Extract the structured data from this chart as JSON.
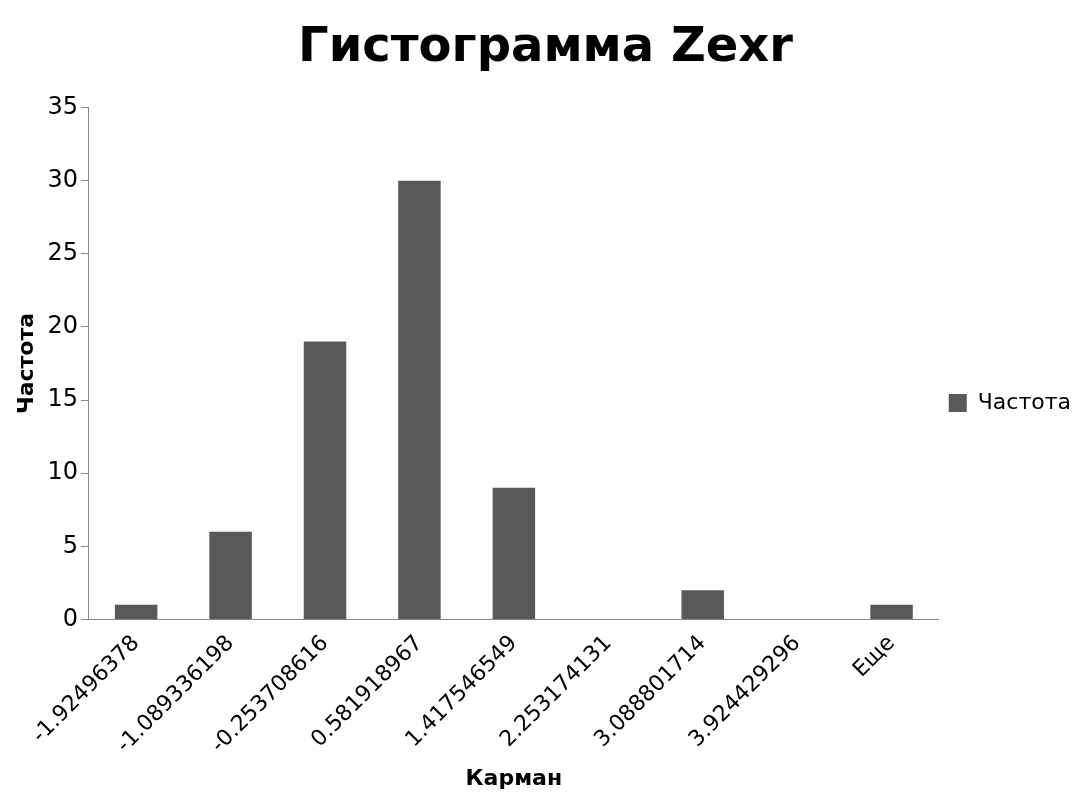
{
  "chart_data": {
    "type": "bar",
    "title": "Гистограмма Zexr",
    "xlabel": "Карман",
    "ylabel": "Частота",
    "categories": [
      "-1.92496378",
      "-1.089336198",
      "-0.253708616",
      "0.581918967",
      "1.417546549",
      "2.253174131",
      "3.088801714",
      "3.924429296",
      "Еще"
    ],
    "series": [
      {
        "name": "Частота",
        "color": "#595959",
        "values": [
          1,
          6,
          19,
          30,
          9,
          0,
          2,
          0,
          1
        ]
      }
    ],
    "ylim": [
      0,
      35
    ],
    "yticks": [
      0,
      5,
      10,
      15,
      20,
      25,
      30,
      35
    ],
    "grid": false,
    "legend": "right"
  }
}
